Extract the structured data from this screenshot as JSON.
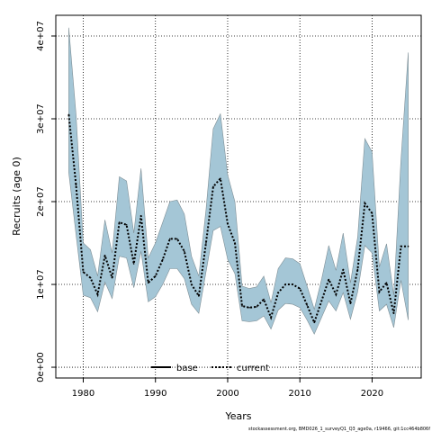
{
  "chart_data": {
    "type": "area",
    "title": "",
    "xlabel": "Years",
    "ylabel": "Recruits (age 0)",
    "xlim": [
      1976.2,
      2026.8
    ],
    "ylim": [
      -1300000,
      42500000
    ],
    "x_ticks": [
      1980,
      1990,
      2000,
      2010,
      2020
    ],
    "x_tick_labels": [
      "1980",
      "1990",
      "2000",
      "2010",
      "2020"
    ],
    "y_ticks": [
      0,
      10000000,
      20000000,
      30000000,
      40000000
    ],
    "y_tick_labels": [
      "0e+00",
      "1e+07",
      "2e+07",
      "3e+07",
      "4e+07"
    ],
    "grid": true,
    "legend_position": "bottom",
    "legend": [
      {
        "label": "base",
        "style": "solid",
        "color": "#000000"
      },
      {
        "label": "current",
        "style": "dotted",
        "color": "#000000"
      }
    ],
    "band_color": "#a4c6d6",
    "band_edge_color": "#7f8f96",
    "x": [
      1978,
      1979,
      1980,
      1981,
      1982,
      1983,
      1984,
      1985,
      1986,
      1987,
      1988,
      1989,
      1990,
      1991,
      1992,
      1993,
      1994,
      1995,
      1996,
      1997,
      1998,
      1999,
      2000,
      2001,
      2002,
      2003,
      2004,
      2005,
      2006,
      2007,
      2008,
      2009,
      2010,
      2011,
      2012,
      2013,
      2014,
      2015,
      2016,
      2017,
      2018,
      2019,
      2020,
      2021,
      2022,
      2023,
      2024,
      2025
    ],
    "series": [
      {
        "name": "current",
        "line_style": "dotted",
        "values": [
          30500000,
          22000000,
          11500000,
          10800000,
          8800000,
          13500000,
          10800000,
          17500000,
          17200000,
          12500000,
          18300000,
          10200000,
          11000000,
          13000000,
          15500000,
          15500000,
          14000000,
          10000000,
          8600000,
          15000000,
          21800000,
          22800000,
          17300000,
          15000000,
          7400000,
          7200000,
          7300000,
          8200000,
          6000000,
          9000000,
          10000000,
          10000000,
          9500000,
          7500000,
          5400000,
          8000000,
          10600000,
          8800000,
          11800000,
          7700000,
          11800000,
          19800000,
          18600000,
          9100000,
          10200000,
          6500000,
          14600000,
          14600000
        ]
      },
      {
        "name": "upper",
        "values": [
          41000000,
          30500000,
          15000000,
          14200000,
          11000000,
          17800000,
          13800000,
          23000000,
          22500000,
          16200000,
          24000000,
          13200000,
          15000000,
          17500000,
          20000000,
          20200000,
          18500000,
          13400000,
          11000000,
          19000000,
          28800000,
          30600000,
          23200000,
          20000000,
          9800000,
          9500000,
          9700000,
          11000000,
          7800000,
          11900000,
          13200000,
          13100000,
          12500000,
          9800000,
          7000000,
          10600000,
          14700000,
          11700000,
          16200000,
          10200000,
          15700000,
          27600000,
          26000000,
          12100000,
          14900000,
          8700000,
          25000000,
          38000000
        ]
      },
      {
        "name": "lower",
        "values": [
          23500000,
          16000000,
          8700000,
          8400000,
          6700000,
          10300000,
          8300000,
          13400000,
          13200000,
          9600000,
          14000000,
          7900000,
          8500000,
          10000000,
          11900000,
          11900000,
          10700000,
          7600000,
          6500000,
          11500000,
          16500000,
          17000000,
          13000000,
          11300000,
          5600000,
          5500000,
          5600000,
          6200000,
          4600000,
          6900000,
          7700000,
          7600000,
          7200000,
          5700000,
          4000000,
          6000000,
          8000000,
          6800000,
          9000000,
          5800000,
          9100000,
          14700000,
          13800000,
          6800000,
          7600000,
          4800000,
          10500000,
          5700000
        ]
      }
    ]
  },
  "footnote": "stockassessment.org, BMD026_1_surveyQ1_Q3_age0a, r19466, git:1cc464b806f"
}
